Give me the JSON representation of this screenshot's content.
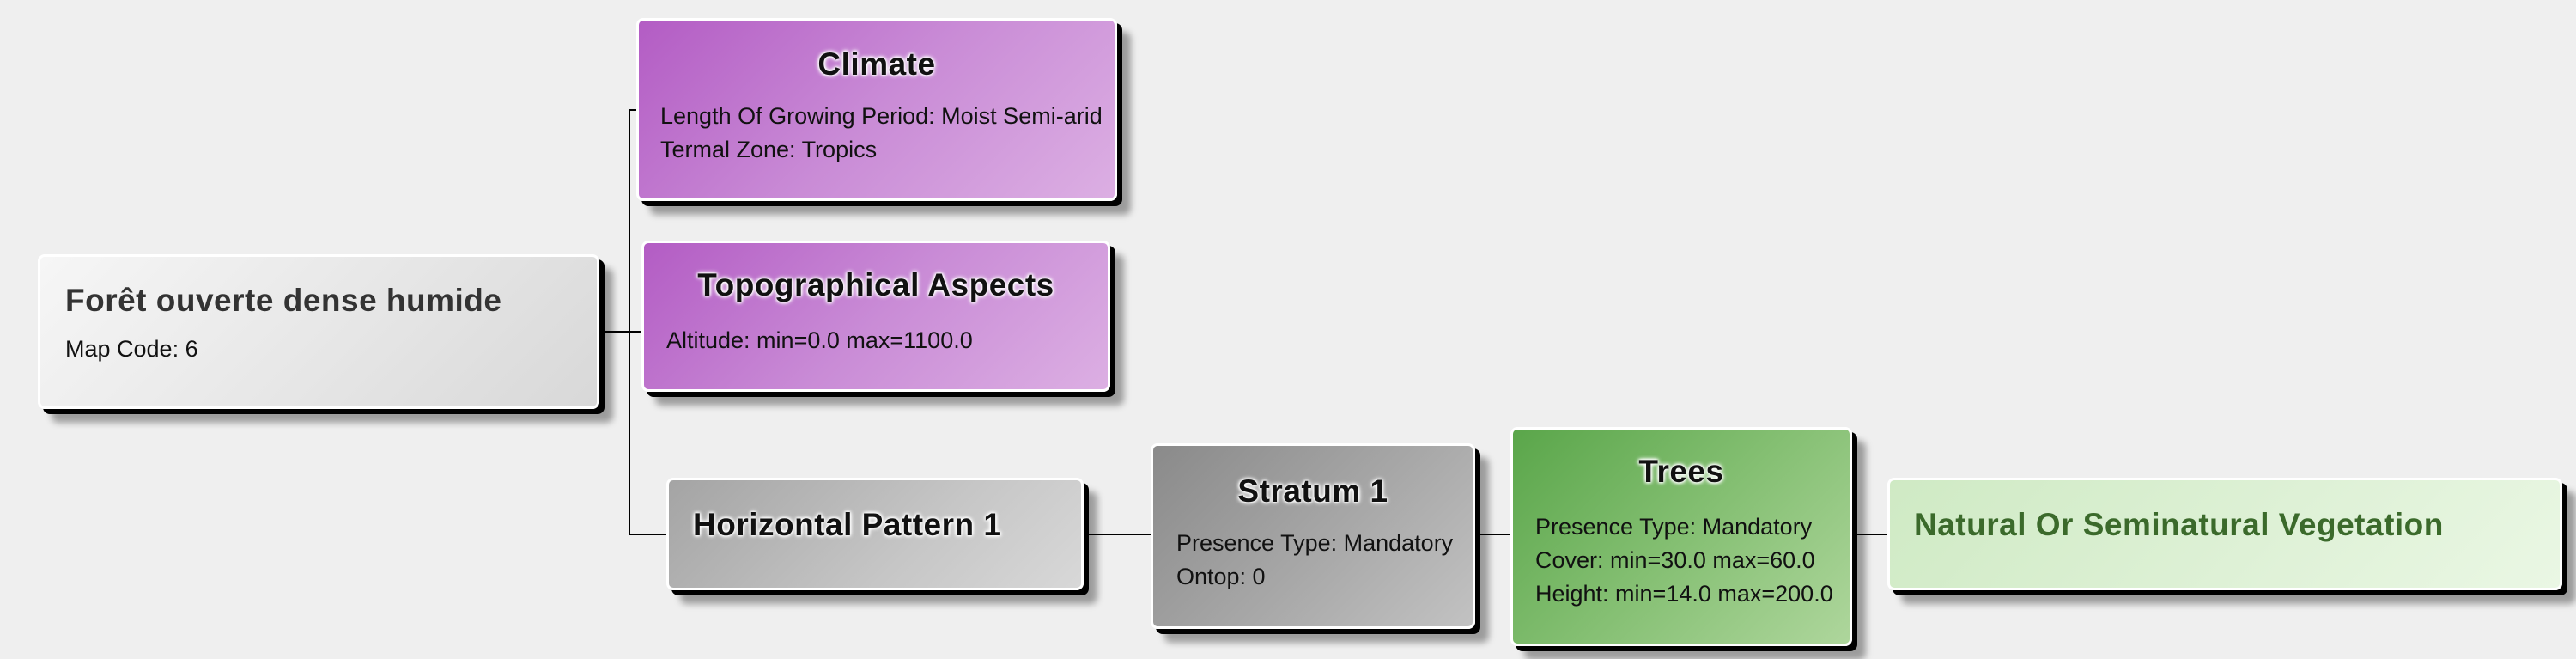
{
  "diagram": {
    "root": {
      "title": "Forêt ouverte dense humide",
      "attrs": [
        "Map Code: 6"
      ]
    },
    "climate": {
      "title": "Climate",
      "attrs": [
        "Length Of Growing Period: Moist Semi-arid",
        "Termal Zone: Tropics"
      ]
    },
    "topography": {
      "title": "Topographical Aspects",
      "attrs": [
        "Altitude: min=0.0 max=1100.0"
      ]
    },
    "horizontal_pattern": {
      "title": "Horizontal Pattern 1"
    },
    "stratum": {
      "title": "Stratum 1",
      "attrs": [
        "Presence Type: Mandatory",
        "Ontop: 0"
      ]
    },
    "trees": {
      "title": "Trees",
      "attrs": [
        "Presence Type: Mandatory",
        "Cover: min=30.0 max=60.0",
        "Height: min=14.0 max=200.0"
      ]
    },
    "vegetation": {
      "title": "Natural Or Seminatural Vegetation"
    }
  },
  "colors": {
    "climate_node": "#c98bd6",
    "topography_node": "#c98bd6",
    "root_node": "#e6e6e6",
    "horizontal_pattern_node": "#c6c6c6",
    "stratum_node": "#a8a8a8",
    "trees_node": "#84bf72",
    "vegetation_node": "#def1d6",
    "vegetation_title": "#3b6a2b",
    "connector": "#000000",
    "background": "#efefef"
  }
}
